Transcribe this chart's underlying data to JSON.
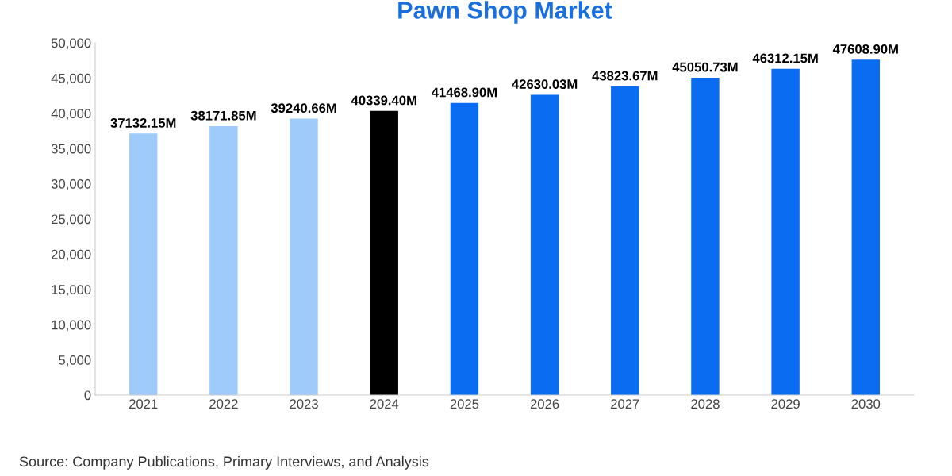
{
  "chart_data": {
    "type": "bar",
    "title": "Pawn Shop Market",
    "categories": [
      "2021",
      "2022",
      "2023",
      "2024",
      "2025",
      "2026",
      "2027",
      "2028",
      "2029",
      "2030"
    ],
    "values": [
      37132.15,
      38171.85,
      39240.66,
      40339.4,
      41468.9,
      42630.03,
      43823.67,
      45050.73,
      46312.15,
      47608.9
    ],
    "value_labels": [
      "37132.15M",
      "38171.85M",
      "39240.66M",
      "40339.40M",
      "41468.90M",
      "42630.03M",
      "43823.67M",
      "45050.73M",
      "46312.15M",
      "47608.90M"
    ],
    "colors": [
      "#9ecbfa",
      "#9ecbfa",
      "#9ecbfa",
      "#000000",
      "#0a6cf0",
      "#0a6cf0",
      "#0a6cf0",
      "#0a6cf0",
      "#0a6cf0",
      "#0a6cf0"
    ],
    "ylim": [
      0,
      50000
    ],
    "yticks": [
      {
        "value": 0,
        "label": "0"
      },
      {
        "value": 5000,
        "label": "5,000"
      },
      {
        "value": 10000,
        "label": "10,000"
      },
      {
        "value": 15000,
        "label": "15,000"
      },
      {
        "value": 20000,
        "label": "20,000"
      },
      {
        "value": 25000,
        "label": "25,000"
      },
      {
        "value": 30000,
        "label": "30,000"
      },
      {
        "value": 35000,
        "label": "35,000"
      },
      {
        "value": 40000,
        "label": "40,000"
      },
      {
        "value": 45000,
        "label": "45,000"
      },
      {
        "value": 50000,
        "label": "50,000"
      }
    ],
    "grid": false,
    "annotations": [
      "Source: Company Publications, Primary Interviews, and Analysis"
    ]
  }
}
